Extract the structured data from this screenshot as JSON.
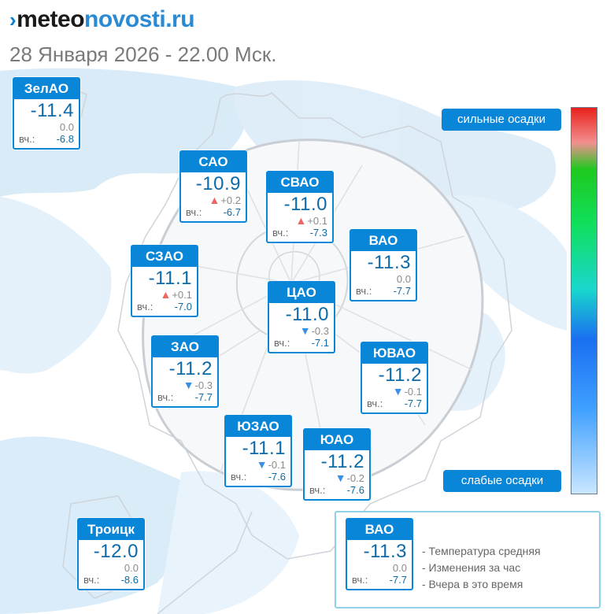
{
  "header": {
    "logo_chevron": "›",
    "logo_brand": "meteo",
    "logo_rest": "novosti.ru",
    "date_line": "28 Января 2026 - 22.00 Мск."
  },
  "colors": {
    "accent": "#0a86d9",
    "temperature_text": "#0c6aa8",
    "rise_arrow": "#f06464",
    "fall_arrow": "#3a8fe6",
    "precip_light": "#d5e9f7"
  },
  "districts": [
    {
      "name": "ЗелАО",
      "temp": "-11.4",
      "change": "0.0",
      "trend": "none",
      "yest_label": "вч.:",
      "yest": "-6.8"
    },
    {
      "name": "САО",
      "temp": "-10.9",
      "change": "+0.2",
      "trend": "up",
      "yest_label": "вч.:",
      "yest": "-6.7"
    },
    {
      "name": "СВАО",
      "temp": "-11.0",
      "change": "+0.1",
      "trend": "up",
      "yest_label": "вч.:",
      "yest": "-7.3"
    },
    {
      "name": "ВАО",
      "temp": "-11.3",
      "change": "0.0",
      "trend": "none",
      "yest_label": "вч.:",
      "yest": "-7.7"
    },
    {
      "name": "СЗАО",
      "temp": "-11.1",
      "change": "+0.1",
      "trend": "up",
      "yest_label": "вч.:",
      "yest": "-7.0"
    },
    {
      "name": "ЦАО",
      "temp": "-11.0",
      "change": "-0.3",
      "trend": "down",
      "yest_label": "вч.:",
      "yest": "-7.1"
    },
    {
      "name": "ЗАО",
      "temp": "-11.2",
      "change": "-0.3",
      "trend": "down",
      "yest_label": "вч.:",
      "yest": "-7.7"
    },
    {
      "name": "ЮВАО",
      "temp": "-11.2",
      "change": "-0.1",
      "trend": "down",
      "yest_label": "вч.:",
      "yest": "-7.7"
    },
    {
      "name": "ЮЗАО",
      "temp": "-11.1",
      "change": "-0.1",
      "trend": "down",
      "yest_label": "вч.:",
      "yest": "-7.6"
    },
    {
      "name": "ЮАО",
      "temp": "-11.2",
      "change": "-0.2",
      "trend": "down",
      "yest_label": "вч.:",
      "yest": "-7.6"
    },
    {
      "name": "Троицк",
      "temp": "-12.0",
      "change": "0.0",
      "trend": "none",
      "yest_label": "вч.:",
      "yest": "-8.6"
    }
  ],
  "scale": {
    "top_label": "сильные осадки",
    "bottom_label": "слабые осадки"
  },
  "legend": {
    "sample": {
      "name": "ВАО",
      "temp": "-11.3",
      "change": "0.0",
      "trend": "none",
      "yest_label": "вч.:",
      "yest": "-7.7"
    },
    "line1": "- Температура средняя",
    "line2": "- Изменения за час",
    "line3": "- Вчера в это время"
  }
}
